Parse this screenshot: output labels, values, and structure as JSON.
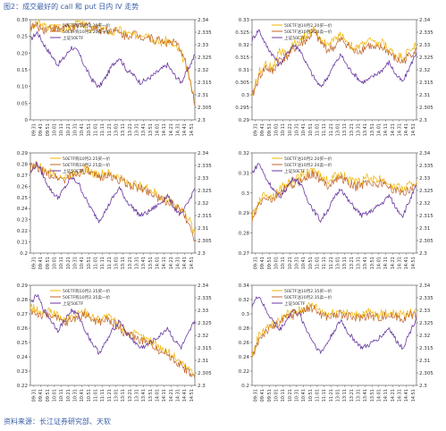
{
  "figure": {
    "title": "图2：成交最好的 call 和 put 日内 IV 走势",
    "source": "资料来源：长江证券研究部、天软"
  },
  "colors": {
    "call": "#f0b400",
    "put": "#c0652a",
    "index": "#6a3aa0",
    "frame": "#444444"
  },
  "chart_data": [
    {
      "type": "line",
      "xlabel_ticks": [
        "09:31",
        "09:41",
        "09:51",
        "10:01",
        "10:11",
        "10:21",
        "10:31",
        "10:41",
        "10:51",
        "11:01",
        "11:11",
        "11:21",
        "13:01",
        "13:11",
        "13:21",
        "13:31",
        "13:41",
        "13:51",
        "14:01",
        "14:11",
        "14:21",
        "14:31",
        "14:41",
        "14:51"
      ],
      "ylim": [
        0,
        0.3
      ],
      "yticks": [
        "0",
        "0.05",
        "0.10",
        "0.15",
        "0.20",
        "0.25",
        "0.30"
      ],
      "y2lim": [
        2.3,
        2.34
      ],
      "y2ticks": [
        "2.3",
        "2.305",
        "2.31",
        "2.315",
        "2.32",
        "2.325",
        "2.33",
        "2.335",
        "2.34"
      ],
      "legend_loc": "top-center",
      "series": [
        {
          "name": "50ETF购10月2.20买一价",
          "axis": "left",
          "values": [
            0.27,
            0.29,
            0.28,
            0.27,
            0.28,
            0.27,
            0.28,
            0.29,
            0.28,
            0.27,
            0.28,
            0.27,
            0.26,
            0.27,
            0.26,
            0.25,
            0.26,
            0.26,
            0.24,
            0.23,
            0.24,
            0.22,
            0.2,
            0.14,
            0.06
          ]
        },
        {
          "name": "50ETF购10月2.20卖一价",
          "axis": "left",
          "values": [
            0.28,
            0.28,
            0.27,
            0.28,
            0.27,
            0.28,
            0.27,
            0.28,
            0.29,
            0.28,
            0.27,
            0.27,
            0.27,
            0.26,
            0.25,
            0.26,
            0.25,
            0.25,
            0.24,
            0.24,
            0.23,
            0.23,
            0.21,
            0.15,
            0.04
          ]
        },
        {
          "name": "上证50ETF",
          "axis": "right",
          "values": [
            2.332,
            2.335,
            2.33,
            2.326,
            2.322,
            2.325,
            2.329,
            2.327,
            2.321,
            2.316,
            2.313,
            2.317,
            2.322,
            2.325,
            2.32,
            2.318,
            2.315,
            2.316,
            2.318,
            2.32,
            2.322,
            2.318,
            2.315,
            2.32,
            2.326
          ]
        }
      ]
    },
    {
      "type": "line",
      "xlabel_ticks": [
        "09:31",
        "09:41",
        "09:51",
        "10:01",
        "10:11",
        "10:21",
        "10:31",
        "10:41",
        "10:51",
        "11:01",
        "11:11",
        "11:21",
        "13:01",
        "13:11",
        "13:21",
        "13:31",
        "13:41",
        "13:51",
        "14:01",
        "14:11",
        "14:21",
        "14:31",
        "14:41",
        "14:51"
      ],
      "ylim": [
        0.29,
        0.33
      ],
      "yticks": [
        "0.29",
        "0.295",
        "0.3",
        "0.305",
        "0.31",
        "0.315",
        "0.32",
        "0.325",
        "0.33"
      ],
      "y2lim": [
        2.3,
        2.34
      ],
      "y2ticks": [
        "2.3",
        "2.305",
        "2.31",
        "2.315",
        "2.32",
        "2.325",
        "2.33",
        "2.335",
        "2.34"
      ],
      "legend_loc": "top-center",
      "series": [
        {
          "name": "50ETF沽10月2.20买一价",
          "axis": "left",
          "values": [
            0.3,
            0.309,
            0.313,
            0.31,
            0.318,
            0.316,
            0.32,
            0.322,
            0.324,
            0.326,
            0.322,
            0.32,
            0.322,
            0.324,
            0.321,
            0.318,
            0.32,
            0.322,
            0.32,
            0.321,
            0.318,
            0.316,
            0.315,
            0.318,
            0.32
          ]
        },
        {
          "name": "50ETF沽10月2.20卖一价",
          "axis": "left",
          "values": [
            0.299,
            0.307,
            0.311,
            0.309,
            0.314,
            0.315,
            0.318,
            0.32,
            0.322,
            0.325,
            0.321,
            0.318,
            0.319,
            0.322,
            0.32,
            0.317,
            0.318,
            0.32,
            0.318,
            0.319,
            0.317,
            0.314,
            0.313,
            0.316,
            0.318
          ]
        },
        {
          "name": "上证50ETF",
          "axis": "right",
          "values": [
            2.332,
            2.336,
            2.33,
            2.326,
            2.322,
            2.326,
            2.33,
            2.328,
            2.322,
            2.317,
            2.313,
            2.317,
            2.322,
            2.326,
            2.321,
            2.318,
            2.315,
            2.316,
            2.318,
            2.32,
            2.323,
            2.318,
            2.315,
            2.321,
            2.327
          ]
        }
      ]
    },
    {
      "type": "line",
      "xlabel_ticks": [
        "09:31",
        "09:41",
        "09:51",
        "10:01",
        "10:11",
        "10:21",
        "10:31",
        "10:41",
        "10:51",
        "11:01",
        "11:11",
        "11:21",
        "13:01",
        "13:11",
        "13:21",
        "13:31",
        "13:41",
        "13:51",
        "14:01",
        "14:11",
        "14:21",
        "14:31",
        "14:41",
        "14:51"
      ],
      "ylim": [
        0.2,
        0.29
      ],
      "yticks": [
        "0.2",
        "0.21",
        "0.22",
        "0.23",
        "0.24",
        "0.25",
        "0.26",
        "0.27",
        "0.28",
        "0.29"
      ],
      "y2lim": [
        2.3,
        2.34
      ],
      "y2ticks": [
        "2.3",
        "2.305",
        "2.31",
        "2.315",
        "2.32",
        "2.325",
        "2.33",
        "2.335",
        "2.34"
      ],
      "legend_loc": "top-center",
      "series": [
        {
          "name": "50ETF购10月2.25买一价",
          "axis": "left",
          "values": [
            0.275,
            0.28,
            0.274,
            0.272,
            0.27,
            0.268,
            0.271,
            0.274,
            0.276,
            0.272,
            0.27,
            0.272,
            0.27,
            0.268,
            0.264,
            0.262,
            0.26,
            0.258,
            0.255,
            0.25,
            0.248,
            0.244,
            0.24,
            0.232,
            0.218
          ]
        },
        {
          "name": "50ETF购10月2.25卖一价",
          "axis": "left",
          "values": [
            0.278,
            0.276,
            0.272,
            0.27,
            0.268,
            0.266,
            0.27,
            0.272,
            0.275,
            0.27,
            0.268,
            0.27,
            0.268,
            0.266,
            0.262,
            0.26,
            0.258,
            0.256,
            0.253,
            0.248,
            0.246,
            0.242,
            0.238,
            0.228,
            0.212
          ]
        },
        {
          "name": "上证50ETF",
          "axis": "right",
          "values": [
            2.332,
            2.336,
            2.33,
            2.325,
            2.322,
            2.326,
            2.33,
            2.328,
            2.322,
            2.317,
            2.313,
            2.317,
            2.322,
            2.326,
            2.321,
            2.318,
            2.315,
            2.316,
            2.318,
            2.32,
            2.323,
            2.318,
            2.315,
            2.32,
            2.326
          ]
        }
      ]
    },
    {
      "type": "line",
      "xlabel_ticks": [
        "09:31",
        "09:41",
        "09:51",
        "10:01",
        "10:11",
        "10:21",
        "10:31",
        "10:41",
        "10:51",
        "11:01",
        "11:11",
        "11:21",
        "13:01",
        "13:11",
        "13:21",
        "13:31",
        "13:41",
        "13:51",
        "14:01",
        "14:11",
        "14:21",
        "14:31",
        "14:41",
        "14:51"
      ],
      "ylim": [
        0.27,
        0.32
      ],
      "yticks": [
        "0.27",
        "0.28",
        "0.29",
        "0.3",
        "0.31",
        "0.32"
      ],
      "y2lim": [
        2.3,
        2.34
      ],
      "y2ticks": [
        "2.3",
        "2.305",
        "2.31",
        "2.315",
        "2.32",
        "2.325",
        "2.33",
        "2.335",
        "2.34"
      ],
      "legend_loc": "top-center",
      "series": [
        {
          "name": "50ETF沽10月2.20买一价",
          "axis": "left",
          "values": [
            0.288,
            0.296,
            0.3,
            0.298,
            0.302,
            0.304,
            0.306,
            0.308,
            0.31,
            0.312,
            0.308,
            0.306,
            0.308,
            0.31,
            0.307,
            0.305,
            0.306,
            0.308,
            0.306,
            0.307,
            0.305,
            0.303,
            0.302,
            0.304,
            0.306
          ]
        },
        {
          "name": "50ETF沽10月2.20卖一价",
          "axis": "left",
          "values": [
            0.286,
            0.294,
            0.298,
            0.296,
            0.3,
            0.302,
            0.304,
            0.306,
            0.308,
            0.31,
            0.306,
            0.304,
            0.306,
            0.308,
            0.305,
            0.303,
            0.304,
            0.306,
            0.304,
            0.305,
            0.303,
            0.301,
            0.3,
            0.302,
            0.304
          ]
        },
        {
          "name": "上证50ETF",
          "axis": "right",
          "values": [
            2.332,
            2.336,
            2.33,
            2.326,
            2.322,
            2.326,
            2.33,
            2.328,
            2.322,
            2.317,
            2.313,
            2.317,
            2.322,
            2.326,
            2.321,
            2.318,
            2.315,
            2.316,
            2.318,
            2.32,
            2.323,
            2.318,
            2.315,
            2.321,
            2.327
          ]
        }
      ]
    },
    {
      "type": "line",
      "xlabel_ticks": [
        "09:31",
        "09:41",
        "09:51",
        "10:01",
        "10:11",
        "10:21",
        "10:31",
        "10:41",
        "10:51",
        "11:01",
        "11:11",
        "11:21",
        "13:01",
        "13:11",
        "13:21",
        "13:31",
        "13:41",
        "13:51",
        "14:01",
        "14:11",
        "14:21",
        "14:31",
        "14:41",
        "14:51"
      ],
      "ylim": [
        0.22,
        0.29
      ],
      "yticks": [
        "0.22",
        "0.23",
        "0.24",
        "0.25",
        "0.26",
        "0.27",
        "0.28",
        "0.29"
      ],
      "y2lim": [
        2.3,
        2.34
      ],
      "y2ticks": [
        "2.3",
        "2.305",
        "2.31",
        "2.315",
        "2.32",
        "2.325",
        "2.33",
        "2.335",
        "2.34"
      ],
      "legend_loc": "top-center",
      "series": [
        {
          "name": "50ETF购10月2.35买一价",
          "axis": "left",
          "values": [
            0.275,
            0.272,
            0.27,
            0.272,
            0.268,
            0.265,
            0.268,
            0.27,
            0.272,
            0.268,
            0.266,
            0.268,
            0.266,
            0.262,
            0.258,
            0.256,
            0.254,
            0.252,
            0.25,
            0.246,
            0.244,
            0.24,
            0.236,
            0.232,
            0.228
          ]
        },
        {
          "name": "50ETF购10月2.35卖一价",
          "axis": "left",
          "values": [
            0.272,
            0.27,
            0.268,
            0.27,
            0.266,
            0.263,
            0.266,
            0.268,
            0.27,
            0.266,
            0.264,
            0.266,
            0.264,
            0.26,
            0.256,
            0.254,
            0.252,
            0.25,
            0.248,
            0.244,
            0.242,
            0.238,
            0.234,
            0.23,
            0.225
          ]
        },
        {
          "name": "上证50ETF",
          "axis": "right",
          "values": [
            2.333,
            2.336,
            2.33,
            2.326,
            2.322,
            2.326,
            2.33,
            2.328,
            2.322,
            2.317,
            2.313,
            2.317,
            2.322,
            2.326,
            2.321,
            2.318,
            2.315,
            2.316,
            2.318,
            2.32,
            2.323,
            2.318,
            2.315,
            2.32,
            2.326
          ]
        }
      ]
    },
    {
      "type": "line",
      "xlabel_ticks": [
        "09:31",
        "09:41",
        "09:51",
        "10:01",
        "10:11",
        "10:21",
        "10:31",
        "10:41",
        "10:51",
        "11:01",
        "11:11",
        "11:21",
        "13:01",
        "13:11",
        "13:21",
        "13:31",
        "13:41",
        "13:51",
        "14:01",
        "14:11",
        "14:21",
        "14:31",
        "14:41",
        "14:51"
      ],
      "ylim": [
        0.2,
        0.34
      ],
      "yticks": [
        "0.2",
        "0.22",
        "0.24",
        "0.26",
        "0.28",
        "0.3",
        "0.32",
        "0.34"
      ],
      "y2lim": [
        2.3,
        2.34
      ],
      "y2ticks": [
        "2.3",
        "2.305",
        "2.31",
        "2.315",
        "2.32",
        "2.325",
        "2.33",
        "2.335",
        "2.34"
      ],
      "legend_loc": "top-center",
      "series": [
        {
          "name": "50ETF沽10月2.35买一价",
          "axis": "left",
          "values": [
            0.24,
            0.27,
            0.28,
            0.285,
            0.29,
            0.3,
            0.302,
            0.305,
            0.31,
            0.312,
            0.305,
            0.3,
            0.302,
            0.305,
            0.3,
            0.298,
            0.3,
            0.302,
            0.298,
            0.3,
            0.302,
            0.3,
            0.298,
            0.302,
            0.305
          ]
        },
        {
          "name": "50ETF沽10月2.35卖一价",
          "axis": "left",
          "values": [
            0.236,
            0.265,
            0.276,
            0.282,
            0.286,
            0.296,
            0.298,
            0.302,
            0.306,
            0.308,
            0.3,
            0.296,
            0.298,
            0.3,
            0.296,
            0.294,
            0.296,
            0.298,
            0.295,
            0.296,
            0.298,
            0.296,
            0.294,
            0.298,
            0.3
          ]
        },
        {
          "name": "上证50ETF",
          "axis": "right",
          "values": [
            2.332,
            2.336,
            2.33,
            2.326,
            2.322,
            2.326,
            2.33,
            2.328,
            2.322,
            2.317,
            2.313,
            2.317,
            2.322,
            2.326,
            2.321,
            2.318,
            2.315,
            2.316,
            2.318,
            2.32,
            2.323,
            2.318,
            2.315,
            2.321,
            2.327
          ]
        }
      ]
    }
  ]
}
